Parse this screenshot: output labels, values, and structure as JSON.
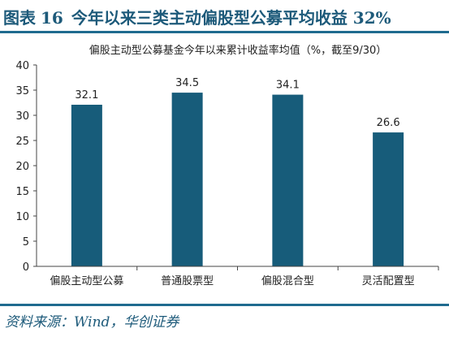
{
  "figure": {
    "label": "图表",
    "number": "16",
    "title": "今年以来三类主动偏股型公募平均收益 32%"
  },
  "source": "资料来源：Wind，华创证券",
  "chart_data": {
    "type": "bar",
    "title": "偏股主动型公募基金今年以来累计收益率均值（%，截至9/30）",
    "categories": [
      "偏股主动型公募",
      "普通股票型",
      "偏股混合型",
      "灵活配置型"
    ],
    "values": [
      32.1,
      34.5,
      34.1,
      26.6
    ],
    "value_labels": [
      "32.1",
      "34.5",
      "34.1",
      "26.6"
    ],
    "ylim": [
      0,
      40
    ],
    "yticks": [
      "0",
      "5",
      "10",
      "15",
      "20",
      "25",
      "30",
      "35",
      "40"
    ],
    "ytick_values": [
      0,
      5,
      10,
      15,
      20,
      25,
      30,
      35,
      40
    ],
    "grid": false,
    "legend": "none",
    "bar_color": "#175c7a",
    "xlabel": "",
    "ylabel": ""
  }
}
